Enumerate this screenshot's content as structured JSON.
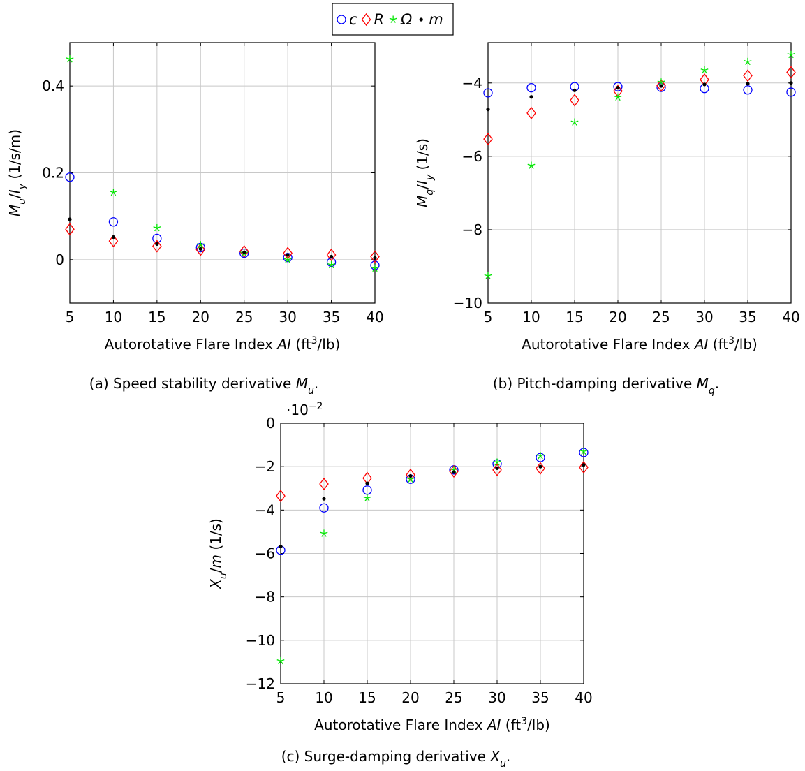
{
  "legend": {
    "entries": [
      {
        "symbol": "circle",
        "label": "c",
        "color": "#0000ff"
      },
      {
        "symbol": "diamond",
        "label": "R",
        "color": "#ff0000"
      },
      {
        "symbol": "star",
        "label": "Ω",
        "color": "#00e600"
      },
      {
        "symbol": "dot",
        "label": "m",
        "color": "#000000"
      }
    ]
  },
  "chart_data": [
    {
      "id": "a",
      "type": "scatter",
      "caption": "(a) Speed stability derivative M_u.",
      "xlabel": "Autorotative Flare Index AI (ft³/lb)",
      "ylabel": "M_u / I_y (1/s/m)",
      "xlim": [
        5,
        40
      ],
      "ylim": [
        -0.1,
        0.5
      ],
      "xticks": [
        5,
        10,
        15,
        20,
        25,
        30,
        35,
        40
      ],
      "yticks": [
        0,
        0.2,
        0.4
      ],
      "ytick_labels": [
        "0",
        "0.2",
        "0.4"
      ],
      "grid": true,
      "x": [
        5,
        10,
        15,
        20,
        25,
        30,
        35,
        40
      ],
      "series": [
        {
          "name": "c",
          "values": [
            0.19,
            0.087,
            0.049,
            0.028,
            0.015,
            0.005,
            -0.006,
            -0.013
          ]
        },
        {
          "name": "R",
          "values": [
            0.07,
            0.043,
            0.031,
            0.023,
            0.019,
            0.015,
            0.011,
            0.007
          ]
        },
        {
          "name": "Ω",
          "values": [
            0.462,
            0.155,
            0.073,
            0.034,
            0.015,
            0.0,
            -0.012,
            -0.02
          ]
        },
        {
          "name": "m",
          "values": [
            0.093,
            0.052,
            0.036,
            0.025,
            0.017,
            0.011,
            0.007,
            0.004
          ]
        }
      ]
    },
    {
      "id": "b",
      "type": "scatter",
      "caption": "(b) Pitch-damping derivative M_q.",
      "xlabel": "Autorotative Flare Index AI (ft³/lb)",
      "ylabel": "M_q / I_y (1/s)",
      "xlim": [
        5,
        40
      ],
      "ylim": [
        -10,
        -2.9
      ],
      "xticks": [
        5,
        10,
        15,
        20,
        25,
        30,
        35,
        40
      ],
      "yticks": [
        -10,
        -8,
        -6,
        -4
      ],
      "ytick_labels": [
        "−10",
        "−8",
        "−6",
        "−4"
      ],
      "grid": true,
      "x": [
        5,
        10,
        15,
        20,
        25,
        30,
        35,
        40
      ],
      "series": [
        {
          "name": "c",
          "values": [
            -4.27,
            -4.13,
            -4.1,
            -4.1,
            -4.12,
            -4.15,
            -4.19,
            -4.25
          ]
        },
        {
          "name": "R",
          "values": [
            -5.53,
            -4.82,
            -4.47,
            -4.22,
            -4.07,
            -3.91,
            -3.8,
            -3.71
          ]
        },
        {
          "name": "Ω",
          "values": [
            -9.26,
            -6.25,
            -5.07,
            -4.39,
            -3.98,
            -3.65,
            -3.42,
            -3.23
          ]
        },
        {
          "name": "m",
          "values": [
            -4.72,
            -4.38,
            -4.2,
            -4.13,
            -4.08,
            -4.04,
            -4.02,
            -4.0
          ]
        }
      ]
    },
    {
      "id": "c",
      "type": "scatter",
      "caption": "(c) Surge-damping derivative X_u.",
      "xlabel": "Autorotative Flare Index AI (ft³/lb)",
      "ylabel": "X_u / m (1/s)",
      "scale_label": "·10⁻²",
      "xlim": [
        5,
        40
      ],
      "ylim": [
        -12,
        0
      ],
      "xticks": [
        5,
        10,
        15,
        20,
        25,
        30,
        35,
        40
      ],
      "yticks": [
        -12,
        -10,
        -8,
        -6,
        -4,
        -2,
        0
      ],
      "ytick_labels": [
        "−12",
        "−10",
        "−8",
        "−6",
        "−4",
        "−2",
        "0"
      ],
      "grid": true,
      "x": [
        5,
        10,
        15,
        20,
        25,
        30,
        35,
        40
      ],
      "series": [
        {
          "name": "c",
          "values": [
            -5.85,
            -3.9,
            -3.08,
            -2.58,
            -2.15,
            -1.87,
            -1.58,
            -1.35
          ]
        },
        {
          "name": "R",
          "values": [
            -3.35,
            -2.8,
            -2.53,
            -2.38,
            -2.22,
            -2.15,
            -2.08,
            -2.03
          ]
        },
        {
          "name": "Ω",
          "values": [
            -10.95,
            -5.08,
            -3.45,
            -2.58,
            -2.15,
            -1.8,
            -1.5,
            -1.3
          ]
        },
        {
          "name": "m",
          "values": [
            -5.68,
            -3.48,
            -2.77,
            -2.43,
            -2.25,
            -2.07,
            -2.0,
            -1.92
          ]
        }
      ]
    }
  ]
}
